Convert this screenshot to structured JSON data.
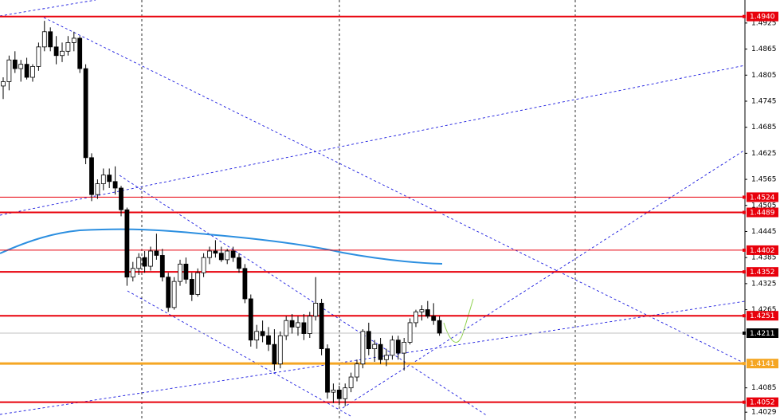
{
  "chart_data": {
    "type": "candlestick",
    "ylim": [
      1.4011,
      1.4978
    ],
    "yticks": [
      1.4925,
      1.4865,
      1.4805,
      1.4745,
      1.4685,
      1.4625,
      1.4565,
      1.4505,
      1.4445,
      1.4385,
      1.4325,
      1.4265,
      1.4085,
      1.4029
    ],
    "open": [
      1.478,
      1.479,
      1.484,
      1.482,
      1.483,
      1.48,
      1.4825,
      1.487,
      1.4905,
      1.487,
      1.485,
      1.486,
      1.488,
      1.489,
      1.482,
      1.4615,
      1.453,
      1.4555,
      1.4575,
      1.456,
      1.4545,
      1.4495,
      1.434,
      1.436,
      1.4385,
      1.4365,
      1.44,
      1.439,
      1.434,
      1.427,
      1.433,
      1.437,
      1.4335,
      1.43,
      1.435,
      1.4385,
      1.44,
      1.4395,
      1.438,
      1.44,
      1.4385,
      1.436,
      1.429,
      1.4195,
      1.4215,
      1.4205,
      1.4185,
      1.414,
      1.4205,
      1.424,
      1.4225,
      1.4235,
      1.421,
      1.425,
      1.428,
      1.4175,
      1.4075,
      1.408,
      1.406,
      1.4085,
      1.411,
      1.414,
      1.4215,
      1.4175,
      1.4185,
      1.415,
      1.416,
      1.4195,
      1.4165,
      1.419,
      1.4235,
      1.426,
      1.4265,
      1.425,
      1.424
    ],
    "high": [
      1.48,
      1.485,
      1.486,
      1.484,
      1.4845,
      1.483,
      1.488,
      1.493,
      1.4915,
      1.4895,
      1.488,
      1.4895,
      1.4905,
      1.4895,
      1.483,
      1.4625,
      1.4565,
      1.459,
      1.459,
      1.4595,
      1.455,
      1.45,
      1.4375,
      1.4395,
      1.44,
      1.441,
      1.444,
      1.4405,
      1.435,
      1.434,
      1.438,
      1.4385,
      1.435,
      1.436,
      1.4395,
      1.441,
      1.4425,
      1.441,
      1.4405,
      1.441,
      1.4395,
      1.437,
      1.43,
      1.423,
      1.424,
      1.4225,
      1.422,
      1.4215,
      1.425,
      1.4255,
      1.425,
      1.4255,
      1.426,
      1.434,
      1.429,
      1.4185,
      1.4095,
      1.409,
      1.4095,
      1.412,
      1.415,
      1.422,
      1.4235,
      1.4195,
      1.42,
      1.4175,
      1.4205,
      1.4205,
      1.42,
      1.4245,
      1.4265,
      1.4275,
      1.4285,
      1.428,
      1.425
    ],
    "low": [
      1.475,
      1.477,
      1.481,
      1.479,
      1.4795,
      1.479,
      1.4815,
      1.486,
      1.486,
      1.483,
      1.4835,
      1.485,
      1.486,
      1.481,
      1.46,
      1.4515,
      1.452,
      1.454,
      1.4545,
      1.453,
      1.448,
      1.432,
      1.433,
      1.4345,
      1.435,
      1.4355,
      1.438,
      1.433,
      1.426,
      1.4265,
      1.432,
      1.4325,
      1.4285,
      1.4295,
      1.434,
      1.437,
      1.4385,
      1.4375,
      1.437,
      1.4375,
      1.435,
      1.428,
      1.418,
      1.4175,
      1.419,
      1.417,
      1.4125,
      1.413,
      1.4195,
      1.421,
      1.4205,
      1.4195,
      1.42,
      1.424,
      1.416,
      1.406,
      1.405,
      1.4045,
      1.4043,
      1.4075,
      1.41,
      1.413,
      1.416,
      1.4145,
      1.414,
      1.4135,
      1.415,
      1.415,
      1.4125,
      1.4185,
      1.4225,
      1.424,
      1.4245,
      1.423,
      1.4205
    ],
    "close": [
      1.479,
      1.484,
      1.482,
      1.483,
      1.48,
      1.4825,
      1.487,
      1.4905,
      1.487,
      1.485,
      1.486,
      1.488,
      1.489,
      1.482,
      1.4615,
      1.453,
      1.4555,
      1.4575,
      1.456,
      1.4545,
      1.4495,
      1.434,
      1.436,
      1.4385,
      1.4365,
      1.44,
      1.439,
      1.434,
      1.427,
      1.433,
      1.437,
      1.4335,
      1.43,
      1.435,
      1.4385,
      1.44,
      1.4395,
      1.438,
      1.44,
      1.4385,
      1.436,
      1.429,
      1.4195,
      1.4215,
      1.4205,
      1.4185,
      1.414,
      1.4205,
      1.424,
      1.4225,
      1.4235,
      1.421,
      1.425,
      1.428,
      1.4175,
      1.4075,
      1.408,
      1.406,
      1.4085,
      1.411,
      1.414,
      1.4215,
      1.4175,
      1.4185,
      1.415,
      1.416,
      1.4195,
      1.4165,
      1.419,
      1.4235,
      1.426,
      1.4265,
      1.425,
      1.424,
      1.4211
    ],
    "levels": [
      {
        "value": 1.494,
        "label": "1.4940",
        "color": "#e8000b",
        "width": 2
      },
      {
        "value": 1.4524,
        "color": "#e8000b",
        "width": 1
      },
      {
        "value": 1.4489,
        "color": "#e8000b",
        "width": 2
      },
      {
        "value": 1.4402,
        "color": "#e8000b",
        "width": 1
      },
      {
        "value": 1.4352,
        "color": "#e8000b",
        "width": 2
      },
      {
        "value": 1.4251,
        "color": "#e8000b",
        "width": 2
      },
      {
        "value": 1.4211,
        "color": "#c0c0c0",
        "label_color": "#000000",
        "width": 1
      },
      {
        "value": 1.4141,
        "color": "#f5a623",
        "width": 3
      },
      {
        "value": 1.4052,
        "color": "#e8000b",
        "width": 2
      }
    ]
  }
}
